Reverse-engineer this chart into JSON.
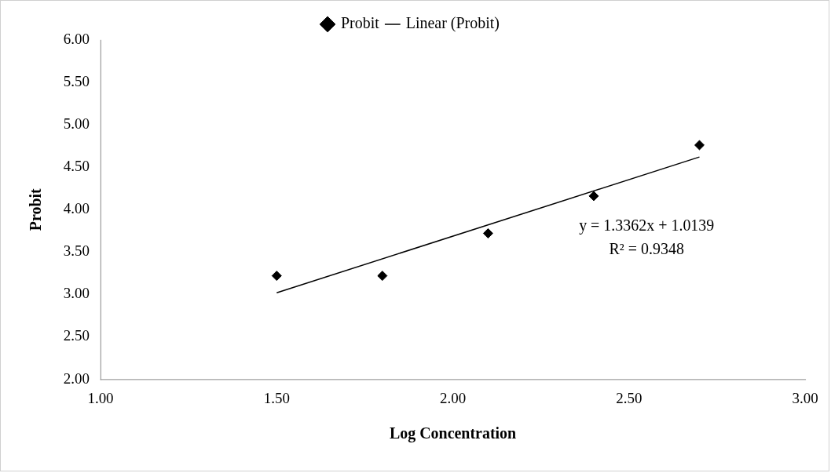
{
  "chart_data": {
    "type": "scatter",
    "xlabel": "Log Concentration",
    "ylabel": "Probit",
    "xlim": [
      1,
      3
    ],
    "xticks": [
      {
        "value": 1,
        "label": "1.00"
      },
      {
        "value": 1.5,
        "label": "1.50"
      },
      {
        "value": 2,
        "label": "2.00"
      },
      {
        "value": 2.5,
        "label": "2.50"
      },
      {
        "value": 3,
        "label": "3.00"
      }
    ],
    "ylim": [
      2,
      6
    ],
    "yticks": [
      {
        "value": 2,
        "label": "2.00"
      },
      {
        "value": 2.5,
        "label": "2.50"
      },
      {
        "value": 3,
        "label": "3.00"
      },
      {
        "value": 3.5,
        "label": "3.50"
      },
      {
        "value": 4,
        "label": "4.00"
      },
      {
        "value": 4.5,
        "label": "4.50"
      },
      {
        "value": 5,
        "label": "5.00"
      },
      {
        "value": 5.5,
        "label": "5.50"
      },
      {
        "value": 6,
        "label": "6.00"
      }
    ],
    "grid": false,
    "legend": "top",
    "series": [
      {
        "name": "Probit",
        "marker": "diamond",
        "color": "#000000",
        "x": [
          1.5,
          1.8,
          2.1,
          2.4,
          2.7
        ],
        "values": [
          3.22,
          3.22,
          3.72,
          4.16,
          4.76
        ]
      },
      {
        "name": "Linear (Probit)",
        "type": "line",
        "marker": "none",
        "color": "#000000",
        "x": [
          1.5,
          2.7
        ],
        "values": [
          3.02,
          4.62
        ]
      }
    ],
    "annotations": [
      "y = 1.3362x + 1.0139",
      "R² = 0.9348"
    ]
  }
}
